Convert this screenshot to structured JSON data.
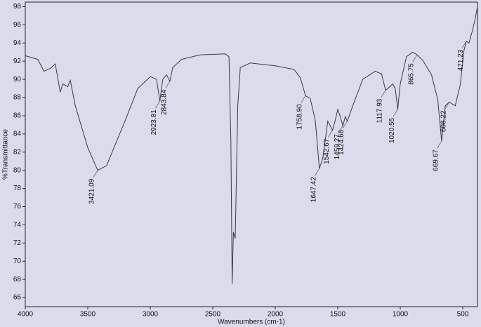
{
  "chart_data": {
    "type": "line",
    "x_label": "Wavenumbers (cm-1)",
    "y_label": "%Transmittance",
    "xlim": [
      4000,
      382
    ],
    "ylim": [
      65,
      98.5
    ],
    "xticks": [
      4000,
      3500,
      3000,
      2500,
      2000,
      1500,
      1000,
      500
    ],
    "yticks": [
      66,
      68,
      70,
      72,
      74,
      76,
      78,
      80,
      82,
      84,
      86,
      88,
      90,
      92,
      94,
      96,
      98
    ],
    "series": [
      {
        "color": "#3a3a44",
        "x": [
          4000,
          3900,
          3850,
          3800,
          3760,
          3720,
          3700,
          3660,
          3640,
          3600,
          3500,
          3421,
          3350,
          3200,
          3100,
          3000,
          2950,
          2923,
          2900,
          2870,
          2843,
          2820,
          2750,
          2600,
          2400,
          2370,
          2355,
          2345,
          2335,
          2320,
          2300,
          2280,
          2200,
          2000,
          1850,
          1800,
          1758,
          1720,
          1680,
          1647,
          1620,
          1580,
          1560,
          1542,
          1520,
          1500,
          1480,
          1459,
          1440,
          1424,
          1380,
          1300,
          1200,
          1150,
          1117,
          1060,
          1040,
          1020,
          1000,
          950,
          900,
          865,
          820,
          750,
          700,
          669,
          640,
          608,
          560,
          520,
          490,
          471,
          450,
          420,
          400,
          385
        ],
        "values": [
          92.6,
          92.2,
          90.9,
          91.2,
          91.7,
          88.6,
          89.5,
          89.2,
          89.9,
          87.1,
          82.5,
          80,
          80.5,
          85.5,
          89,
          90.3,
          90,
          87.6,
          90,
          90.5,
          89.8,
          91.3,
          92.2,
          92.7,
          92.8,
          92.5,
          83.2,
          67.5,
          73.2,
          72.5,
          87.1,
          91.3,
          91.8,
          91.5,
          91.1,
          90.2,
          88.2,
          87.9,
          85.5,
          80.2,
          81.3,
          85.4,
          84.9,
          84.4,
          85.5,
          86.7,
          85.9,
          84.9,
          85.9,
          85.4,
          87.1,
          90,
          90.9,
          90.6,
          88.8,
          89.5,
          89,
          86.7,
          89.5,
          92.5,
          93,
          92.7,
          92.1,
          90.5,
          87.8,
          83.2,
          87.1,
          87.5,
          87.1,
          89.4,
          93.2,
          94.2,
          94,
          95.5,
          96.7,
          97.8
        ]
      }
    ],
    "annotations": [
      {
        "text": "3421.09",
        "x": 3421.09,
        "y": 80
      },
      {
        "text": "2923.81",
        "x": 2923.81,
        "y": 87.6
      },
      {
        "text": "2843.84",
        "x": 2843.84,
        "y": 89.8
      },
      {
        "text": "1758.90",
        "x": 1758.9,
        "y": 88.2
      },
      {
        "text": "1647.42",
        "x": 1647.42,
        "y": 80.2
      },
      {
        "text": "1542.67",
        "x": 1542.67,
        "y": 84.4
      },
      {
        "text": "1459.27",
        "x": 1459.27,
        "y": 84.9
      },
      {
        "text": "1424.66",
        "x": 1424.66,
        "y": 85.4
      },
      {
        "text": "1117.93",
        "x": 1117.93,
        "y": 88.8
      },
      {
        "text": "1020.55",
        "x": 1020.55,
        "y": 86.7
      },
      {
        "text": "865.75",
        "x": 865.75,
        "y": 92.7
      },
      {
        "text": "669.67",
        "x": 669.67,
        "y": 83.2
      },
      {
        "text": "608.22",
        "x": 608.22,
        "y": 87.5
      },
      {
        "text": "471.23",
        "x": 471.23,
        "y": 94.2
      }
    ]
  }
}
